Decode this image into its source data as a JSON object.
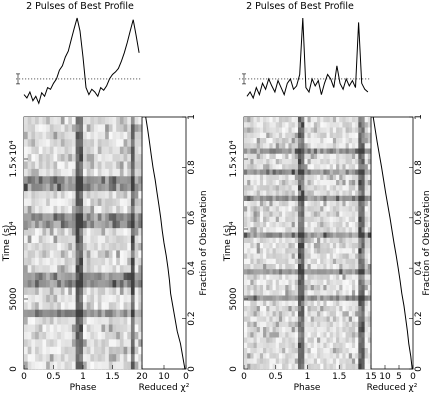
{
  "panels": [
    {
      "title": "2 Pulses of Best Profile",
      "xlabel": "Phase",
      "ylabel": "Time (s)",
      "chi_label": "Reduced χ²",
      "frac_label": "Fraction of Observation",
      "x_ticks": [
        "0",
        "0.5",
        "1",
        "1.5"
      ],
      "y_ticks": [
        "0",
        "5000",
        "10⁴",
        "1.5×10⁴"
      ],
      "chi_ticks": [
        "20",
        "10",
        "0"
      ],
      "frac_ticks": [
        "0",
        "0.2",
        "0.4",
        "0.6",
        "0.8",
        "1"
      ]
    },
    {
      "title": "2 Pulses of Best Profile",
      "xlabel": "Phase",
      "ylabel": "Time (s)",
      "chi_label": "Reduced χ²",
      "frac_label": "Fraction of Observation",
      "x_ticks": [
        "0",
        "0.5",
        "1",
        "1.5"
      ],
      "y_ticks": [
        "0",
        "5000",
        "10⁴",
        "1.5×10⁴"
      ],
      "chi_ticks": [
        "15",
        "10",
        "5",
        "0"
      ],
      "frac_ticks": [
        "0",
        "0.2",
        "0.4",
        "0.6",
        "0.8",
        "1"
      ]
    }
  ],
  "chart_data": [
    {
      "type": "line",
      "title": "2 Pulses of Best Profile",
      "xlabel": "Phase",
      "x_range": [
        0,
        2
      ],
      "profile_phase": [
        0.0,
        0.05,
        0.1,
        0.15,
        0.2,
        0.25,
        0.3,
        0.35,
        0.4,
        0.45,
        0.5,
        0.55,
        0.6,
        0.65,
        0.7,
        0.75,
        0.8,
        0.85,
        0.9,
        0.95,
        1.0,
        1.05,
        1.1,
        1.15,
        1.2,
        1.25,
        1.3,
        1.35,
        1.4,
        1.45,
        1.5,
        1.55,
        1.6,
        1.65,
        1.7,
        1.75,
        1.8,
        1.85,
        1.9,
        1.95
      ],
      "profile_intensity": [
        0.12,
        0.08,
        0.15,
        0.05,
        0.1,
        0.02,
        0.14,
        0.1,
        0.2,
        0.18,
        0.25,
        0.3,
        0.4,
        0.45,
        0.55,
        0.62,
        0.75,
        0.88,
        1.0,
        0.85,
        0.55,
        0.2,
        0.12,
        0.18,
        0.15,
        0.1,
        0.2,
        0.17,
        0.22,
        0.3,
        0.35,
        0.38,
        0.42,
        0.5,
        0.6,
        0.72,
        0.85,
        0.98,
        0.8,
        0.6
      ],
      "chi2_vs_fraction": {
        "fraction": [
          0,
          0.05,
          0.1,
          0.15,
          0.2,
          0.25,
          0.3,
          0.35,
          0.4,
          0.45,
          0.5,
          0.55,
          0.6,
          0.65,
          0.7,
          0.75,
          0.8,
          0.85,
          0.9,
          0.95,
          1.0
        ],
        "reduced_chi2": [
          0.5,
          1.5,
          2.5,
          4,
          5,
          6,
          7,
          7.5,
          8.2,
          9,
          10,
          10.8,
          11.5,
          12.3,
          13.2,
          14,
          15,
          15.8,
          16.6,
          17.4,
          18.3
        ]
      },
      "time_range_s": [
        0,
        18000
      ],
      "chi2_range": [
        20,
        0
      ]
    },
    {
      "type": "line",
      "title": "2 Pulses of Best Profile",
      "xlabel": "Phase",
      "x_range": [
        0,
        2
      ],
      "profile_phase": [
        0.0,
        0.05,
        0.1,
        0.15,
        0.2,
        0.25,
        0.3,
        0.35,
        0.4,
        0.45,
        0.5,
        0.55,
        0.6,
        0.65,
        0.7,
        0.75,
        0.8,
        0.85,
        0.9,
        0.95,
        1.0,
        1.05,
        1.1,
        1.15,
        1.2,
        1.25,
        1.3,
        1.35,
        1.4,
        1.45,
        1.5,
        1.55,
        1.6,
        1.65,
        1.7,
        1.75,
        1.8,
        1.85,
        1.9,
        1.95
      ],
      "profile_intensity": [
        0.1,
        0.15,
        0.08,
        0.2,
        0.12,
        0.25,
        0.18,
        0.3,
        0.22,
        0.15,
        0.28,
        0.2,
        0.12,
        0.25,
        0.3,
        0.18,
        0.22,
        0.35,
        1.0,
        0.2,
        0.15,
        0.3,
        0.22,
        0.28,
        0.12,
        0.25,
        0.35,
        0.3,
        0.2,
        0.45,
        0.25,
        0.18,
        0.3,
        0.22,
        0.28,
        0.2,
        0.95,
        0.25,
        0.18,
        0.15
      ],
      "chi2_vs_fraction": {
        "fraction": [
          0,
          0.05,
          0.1,
          0.15,
          0.2,
          0.25,
          0.3,
          0.35,
          0.4,
          0.45,
          0.5,
          0.55,
          0.6,
          0.65,
          0.7,
          0.75,
          0.8,
          0.85,
          0.9,
          0.95,
          1.0
        ],
        "reduced_chi2": [
          0.3,
          0.8,
          1.5,
          2,
          2.6,
          3.2,
          4,
          4.6,
          5.3,
          6,
          6.8,
          7.5,
          8.2,
          9,
          9.8,
          10.5,
          11.2,
          12,
          12.8,
          13.5,
          14.2
        ]
      },
      "time_range_s": [
        0,
        18000
      ],
      "chi2_range": [
        15,
        0
      ]
    }
  ]
}
